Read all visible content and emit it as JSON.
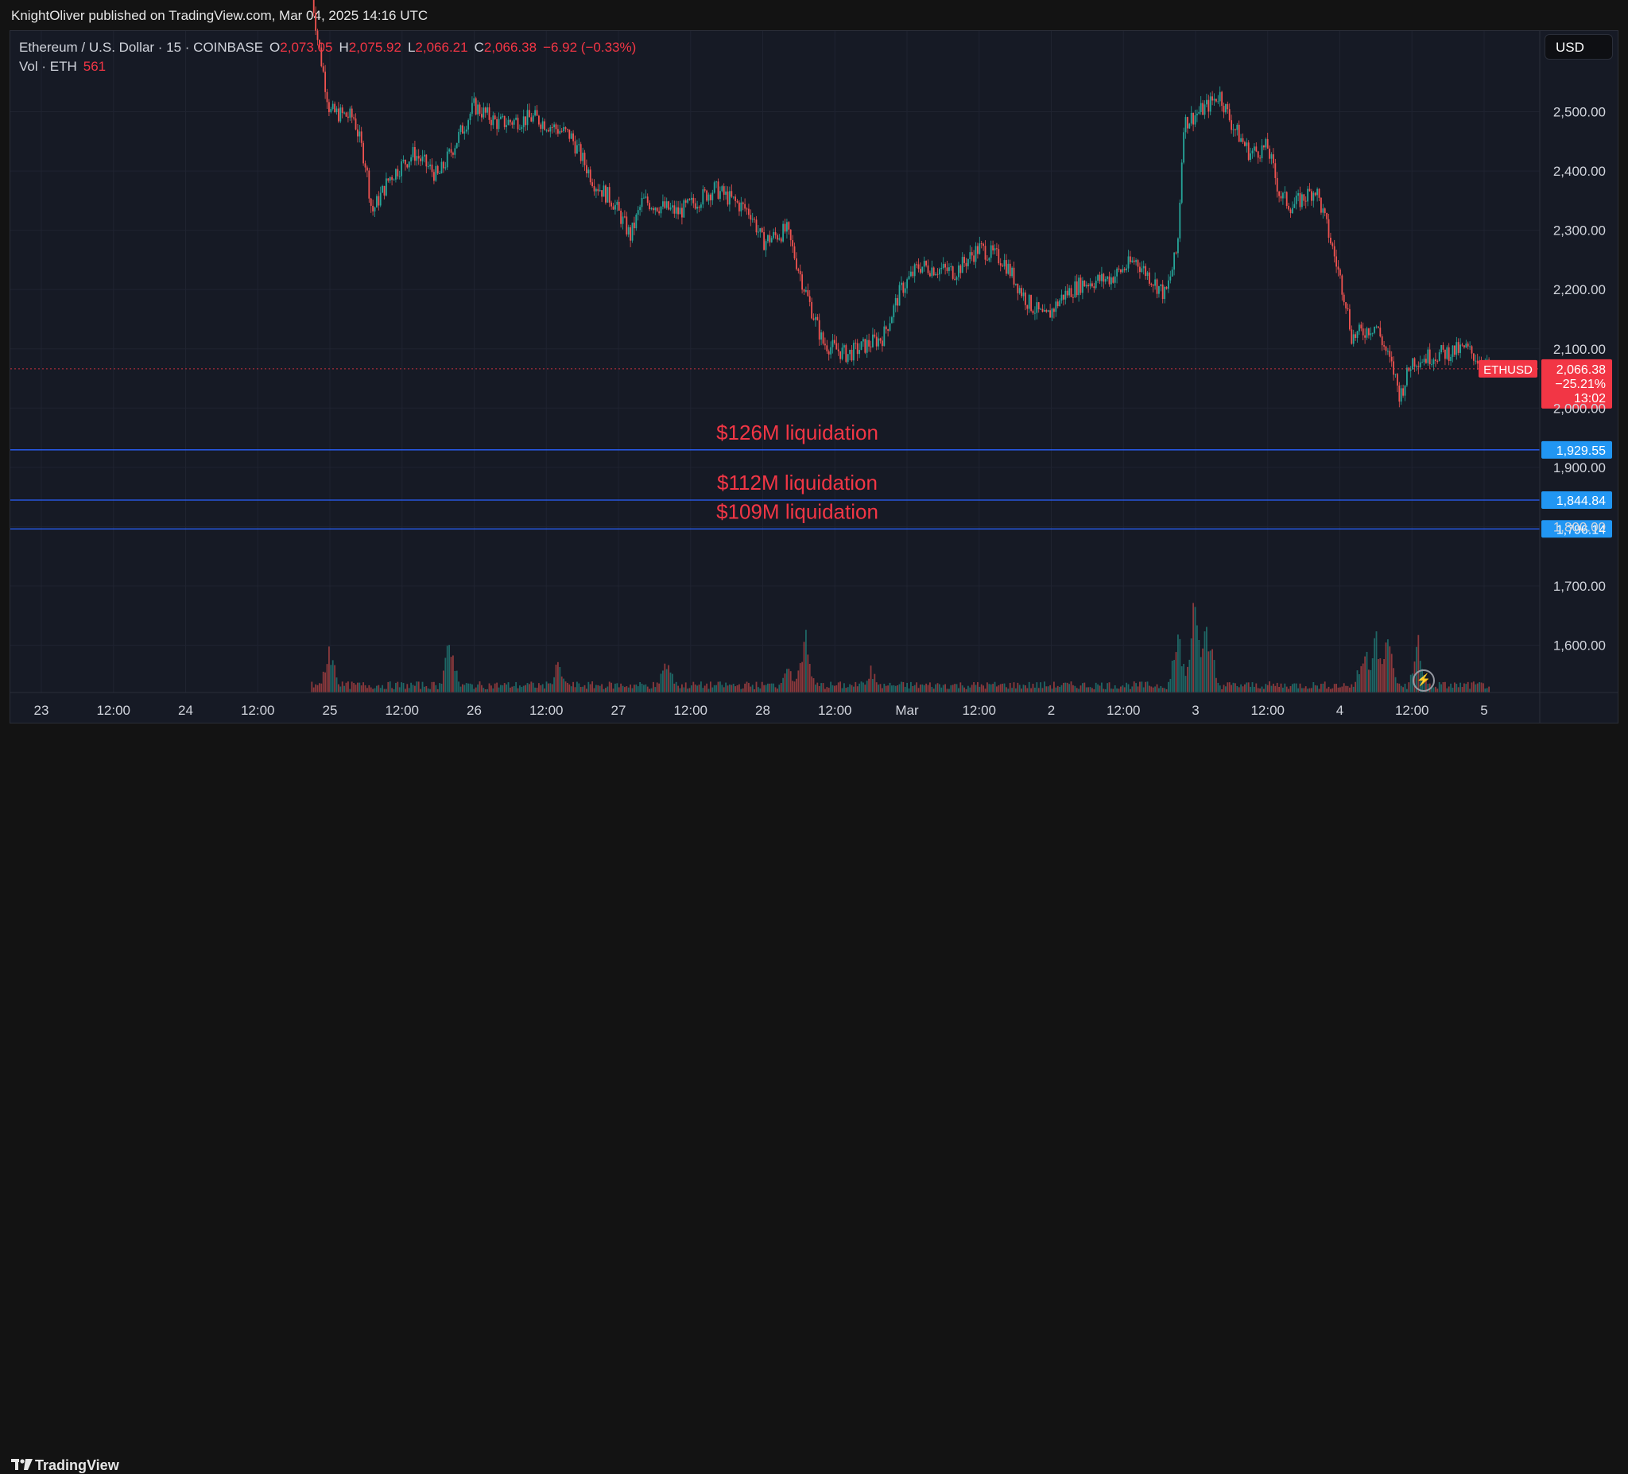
{
  "header": {
    "publisher": "KnightOliver published on TradingView.com, Mar 04, 2025 14:16 UTC"
  },
  "legend": {
    "symbol": "Ethereum / U.S. Dollar · 15 · COINBASE",
    "open_label": "O",
    "open": "2,073.05",
    "high_label": "H",
    "high": "2,075.92",
    "low_label": "L",
    "low": "2,066.21",
    "close_label": "C",
    "close": "2,066.38",
    "change": "−6.92 (−0.33%)",
    "volume_label": "Vol · ETH",
    "volume": "561"
  },
  "currency_button": "USD",
  "footer": {
    "brand": "TradingView"
  },
  "colors": {
    "up": "#26a69a",
    "down": "#ef5350",
    "liquidation_line": "#2962ff",
    "liquidation_text": "#f23645",
    "price_tag": "#f23645",
    "level_tag": "#2196f3"
  },
  "chart_data": {
    "type": "candlestick",
    "symbol": "ETHUSD",
    "interval": "15",
    "x_labels": [
      "23",
      "12:00",
      "24",
      "12:00",
      "25",
      "12:00",
      "26",
      "12:00",
      "27",
      "12:00",
      "28",
      "12:00",
      "Mar",
      "12:00",
      "2",
      "12:00",
      "3",
      "12:00",
      "4",
      "12:00",
      "5"
    ],
    "y_ticks": [
      1600,
      1700,
      1800,
      1900,
      2000,
      2100,
      2200,
      2300,
      2400,
      2500
    ],
    "y_tick_labels": [
      "1,600.00",
      "1,700.00",
      "1,800.00",
      "1,900.00",
      "2,000.00",
      "2,100.00",
      "2,200.00",
      "2,300.00",
      "2,400.00",
      "2,500.00"
    ],
    "ylim": [
      1520,
      2640
    ],
    "price_path": [
      [
        "24 21:00",
        2700
      ],
      [
        "24 22:00",
        2620
      ],
      [
        "25 00:00",
        2500
      ],
      [
        "25 04:00",
        2490
      ],
      [
        "25 06:00",
        2410
      ],
      [
        "25 07:00",
        2330
      ],
      [
        "25 10:00",
        2390
      ],
      [
        "25 14:00",
        2430
      ],
      [
        "25 18:00",
        2390
      ],
      [
        "25 22:00",
        2470
      ],
      [
        "26 00:00",
        2510
      ],
      [
        "26 04:00",
        2480
      ],
      [
        "26 10:00",
        2490
      ],
      [
        "26 16:00",
        2460
      ],
      [
        "26 20:00",
        2380
      ],
      [
        "26 23:00",
        2350
      ],
      [
        "27 02:00",
        2290
      ],
      [
        "27 04:00",
        2350
      ],
      [
        "27 10:00",
        2330
      ],
      [
        "27 16:00",
        2370
      ],
      [
        "27 22:00",
        2330
      ],
      [
        "28 00:00",
        2280
      ],
      [
        "28 04:00",
        2300
      ],
      [
        "28 07:00",
        2200
      ],
      [
        "28 10:00",
        2110
      ],
      [
        "28 14:00",
        2090
      ],
      [
        "28 20:00",
        2120
      ],
      [
        "28 23:00",
        2200
      ],
      [
        "1 02:00",
        2240
      ],
      [
        "1 08:00",
        2230
      ],
      [
        "1 12:00",
        2270
      ],
      [
        "1 16:00",
        2250
      ],
      [
        "1 20:00",
        2180
      ],
      [
        "1 23:00",
        2150
      ],
      [
        "2 02:00",
        2190
      ],
      [
        "2 05:00",
        2210
      ],
      [
        "2 10:00",
        2220
      ],
      [
        "2 14:00",
        2250
      ],
      [
        "2 19:00",
        2190
      ],
      [
        "2 21:00",
        2270
      ],
      [
        "2 22:00",
        2480
      ],
      [
        "3 02:00",
        2510
      ],
      [
        "3 04:00",
        2530
      ],
      [
        "3 06:00",
        2480
      ],
      [
        "3 09:00",
        2430
      ],
      [
        "3 12:00",
        2440
      ],
      [
        "3 14:00",
        2360
      ],
      [
        "3 16:00",
        2340
      ],
      [
        "3 20:00",
        2370
      ],
      [
        "3 22:00",
        2300
      ],
      [
        "4 01:00",
        2180
      ],
      [
        "4 02:00",
        2120
      ],
      [
        "4 06:00",
        2140
      ],
      [
        "4 09:00",
        2060
      ],
      [
        "4 10:00",
        2020
      ],
      [
        "4 12:00",
        2080
      ],
      [
        "4 16:00",
        2090
      ],
      [
        "4 21:00",
        2100
      ],
      [
        "5 01:00",
        2066
      ]
    ],
    "volume_spikes": [
      [
        "25 00:00",
        0.35
      ],
      [
        "25 20:00",
        0.42
      ],
      [
        "26 14:00",
        0.22
      ],
      [
        "27 08:00",
        0.28
      ],
      [
        "28 04:00",
        0.22
      ],
      [
        "28 07:00",
        0.45
      ],
      [
        "28 18:00",
        0.18
      ],
      [
        "2 21:00",
        0.45
      ],
      [
        "3 00:00",
        0.85
      ],
      [
        "3 02:00",
        0.55
      ],
      [
        "4 04:00",
        0.38
      ],
      [
        "4 06:00",
        0.45
      ],
      [
        "4 08:00",
        0.4
      ],
      [
        "4 13:00",
        0.38
      ]
    ],
    "current_price": {
      "symbol_tag": "ETHUSD",
      "value": 2066.38,
      "label": "2,066.38",
      "change": "−25.21%",
      "countdown": "13:02"
    },
    "liquidation_levels": [
      {
        "value": 1929.55,
        "label": "1,929.55",
        "text": "$126M liquidation"
      },
      {
        "value": 1844.84,
        "label": "1,844.84",
        "text": "$112M liquidation"
      },
      {
        "value": 1796.14,
        "label": "1,796.14",
        "text": "$109M liquidation"
      }
    ],
    "grid": true
  }
}
